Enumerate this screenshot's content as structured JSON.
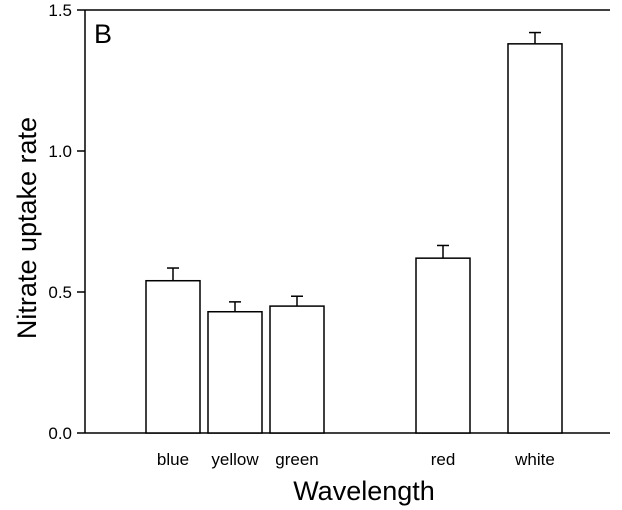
{
  "chart_data": {
    "type": "bar",
    "panel_label": "B",
    "categories": [
      "blue",
      "yellow",
      "green",
      "red",
      "white"
    ],
    "values": [
      0.54,
      0.43,
      0.45,
      0.62,
      1.38
    ],
    "error_plus": [
      0.045,
      0.035,
      0.035,
      0.045,
      0.04
    ],
    "xlabel": "Wavelength",
    "ylabel": "Nitrate uptake rate",
    "ylim": [
      0,
      1.5
    ],
    "yticks": [
      "0.0",
      "0.5",
      "1.0",
      "1.5"
    ],
    "ytick_values": [
      0,
      0.5,
      1.0,
      1.5
    ],
    "grid": false,
    "bar_color": "#ffffff",
    "edge_color": "#000000"
  }
}
